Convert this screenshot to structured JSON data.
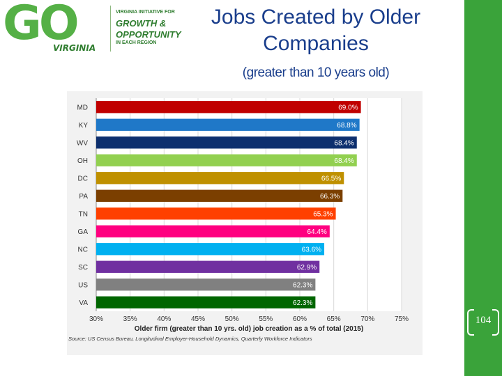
{
  "logo": {
    "letters": "GO",
    "state": "VIRGINIA",
    "line1": "VIRGINIA INITIATIVE FOR",
    "line2": "GROWTH &",
    "line3": "OPPORTUNITY",
    "line4": "IN EACH REGION"
  },
  "slide": {
    "title": "Jobs Created by Older Companies",
    "subtitle": "(greater than 10 years old)",
    "page_number": "104"
  },
  "colors": {
    "title": "#1a3e8c",
    "side_strip": "#3aa33a"
  },
  "chart_data": {
    "type": "bar",
    "orientation": "horizontal",
    "categories": [
      "MD",
      "KY",
      "WV",
      "OH",
      "DC",
      "PA",
      "TN",
      "GA",
      "NC",
      "SC",
      "US",
      "VA"
    ],
    "values": [
      69.0,
      68.8,
      68.4,
      68.4,
      66.5,
      66.3,
      65.3,
      64.4,
      63.6,
      62.9,
      62.3,
      62.3
    ],
    "value_labels": [
      "69.0%",
      "68.8%",
      "68.4%",
      "68.4%",
      "66.5%",
      "66.3%",
      "65.3%",
      "64.4%",
      "63.6%",
      "62.9%",
      "62.3%",
      "62.3%"
    ],
    "bar_colors": [
      "#c00000",
      "#1f78c8",
      "#0d2f6e",
      "#92d050",
      "#bf9000",
      "#7b3f00",
      "#ff4000",
      "#ff0080",
      "#00b0f0",
      "#7030a0",
      "#808080",
      "#006600"
    ],
    "xlim": [
      30,
      75
    ],
    "xticks": [
      "30%",
      "35%",
      "40%",
      "45%",
      "50%",
      "55%",
      "60%",
      "65%",
      "70%",
      "75%"
    ],
    "xlabel": "Older firm (greater than 10 yrs. old) job creation as a % of total (2015)",
    "source": "Source: US Census Bureau, Longitudinal Employer-Household Dynamics, Quarterly Workforce Indicators",
    "grid": true
  }
}
